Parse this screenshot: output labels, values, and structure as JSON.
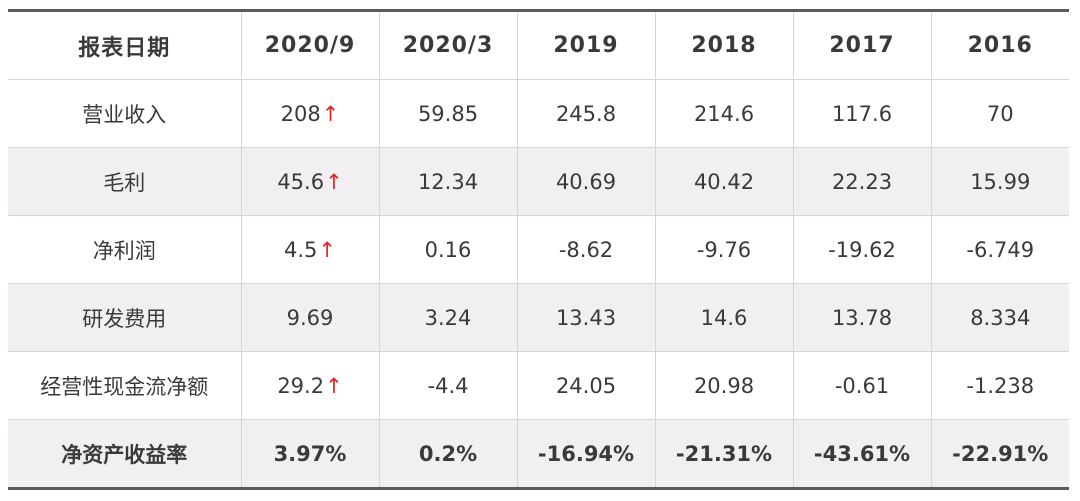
{
  "table": {
    "header": [
      "报表日期",
      "2020/9",
      "2020/3",
      "2019",
      "2018",
      "2017",
      "2016"
    ],
    "rows": [
      {
        "label": "营业收入",
        "cells": [
          {
            "v": "208",
            "up": "↑"
          },
          {
            "v": "59.85",
            "up": ""
          },
          {
            "v": "245.8",
            "up": ""
          },
          {
            "v": "214.6",
            "up": ""
          },
          {
            "v": "117.6",
            "up": ""
          },
          {
            "v": "70",
            "up": ""
          }
        ]
      },
      {
        "label": "毛利",
        "cells": [
          {
            "v": "45.6",
            "up": "↑"
          },
          {
            "v": "12.34",
            "up": ""
          },
          {
            "v": "40.69",
            "up": ""
          },
          {
            "v": "40.42",
            "up": ""
          },
          {
            "v": "22.23",
            "up": ""
          },
          {
            "v": "15.99",
            "up": ""
          }
        ]
      },
      {
        "label": "净利润",
        "cells": [
          {
            "v": "4.5",
            "up": "↑"
          },
          {
            "v": "0.16",
            "up": ""
          },
          {
            "v": "-8.62",
            "up": ""
          },
          {
            "v": "-9.76",
            "up": ""
          },
          {
            "v": "-19.62",
            "up": ""
          },
          {
            "v": "-6.749",
            "up": ""
          }
        ]
      },
      {
        "label": "研发费用",
        "cells": [
          {
            "v": "9.69",
            "up": ""
          },
          {
            "v": "3.24",
            "up": ""
          },
          {
            "v": "13.43",
            "up": ""
          },
          {
            "v": "14.6",
            "up": ""
          },
          {
            "v": "13.78",
            "up": ""
          },
          {
            "v": "8.334",
            "up": ""
          }
        ]
      },
      {
        "label": "经营性现金流净额",
        "cells": [
          {
            "v": "29.2",
            "up": "↑"
          },
          {
            "v": "-4.4",
            "up": ""
          },
          {
            "v": "24.05",
            "up": ""
          },
          {
            "v": "20.98",
            "up": ""
          },
          {
            "v": "-0.61",
            "up": ""
          },
          {
            "v": "-1.238",
            "up": ""
          }
        ]
      },
      {
        "label": "净资产收益率",
        "cells": [
          {
            "v": "3.97%",
            "up": ""
          },
          {
            "v": "0.2%",
            "up": ""
          },
          {
            "v": "-16.94%",
            "up": ""
          },
          {
            "v": "-21.31%",
            "up": ""
          },
          {
            "v": "-43.61%",
            "up": ""
          },
          {
            "v": "-22.91%",
            "up": ""
          }
        ]
      }
    ]
  },
  "colors": {
    "arrow": "#e0242c",
    "shade": "#f1eff2",
    "text": "#3a3a3a",
    "rule": "#5a5a5a"
  },
  "icons": {
    "increase": "up-arrow-icon"
  }
}
